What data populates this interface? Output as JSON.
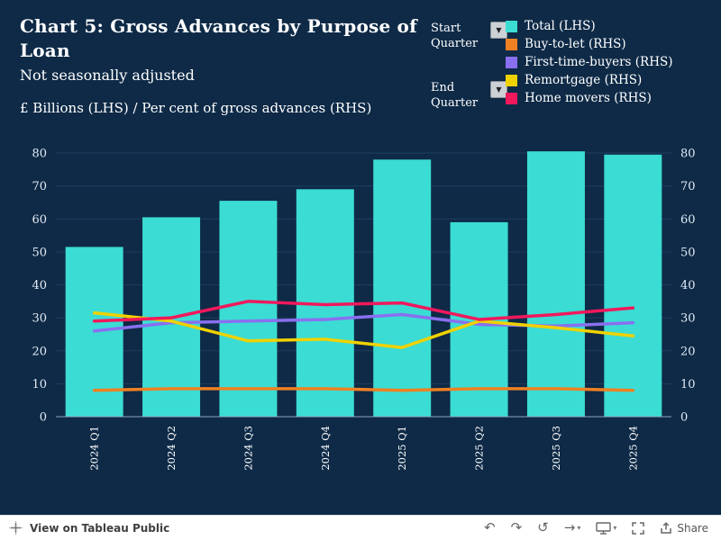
{
  "header": {
    "title": "Chart 5: Gross Advances by Purpose of Loan",
    "subtitle": "Not seasonally adjusted",
    "axis_note": "£ Billions (LHS) / Per cent of gross advances (RHS)"
  },
  "controls": {
    "start_quarter_label": "Start Quarter",
    "end_quarter_label": "End Quarter"
  },
  "legend": [
    {
      "label": "Total (LHS)",
      "color": "#3bdcd3"
    },
    {
      "label": "Buy-to-let (RHS)",
      "color": "#ee8022"
    },
    {
      "label": "First-time-buyers (RHS)",
      "color": "#8a6ff0"
    },
    {
      "label": "Remortgage (RHS)",
      "color": "#f0d100"
    },
    {
      "label": "Home movers (RHS)",
      "color": "#f1185c"
    }
  ],
  "chart_data": {
    "type": "bar",
    "subtype": "combo-bar-line",
    "categories": [
      "2024 Q1",
      "2024 Q2",
      "2024 Q3",
      "2024 Q4",
      "2025 Q1",
      "2025 Q2",
      "2025 Q3",
      "2025 Q4"
    ],
    "bar_series": {
      "name": "Total (LHS)",
      "color": "#3bdcd3",
      "values": [
        51.5,
        60.5,
        65.5,
        69,
        78,
        59,
        80.5,
        79.5
      ]
    },
    "line_series": [
      {
        "name": "Buy-to-let (RHS)",
        "color": "#ee8022",
        "values": [
          8,
          8.5,
          8.5,
          8.5,
          8,
          8.5,
          8.5,
          8
        ]
      },
      {
        "name": "First-time-buyers (RHS)",
        "color": "#8a6ff0",
        "values": [
          26,
          28.5,
          29,
          29.5,
          31,
          28,
          27.5,
          28.5
        ]
      },
      {
        "name": "Remortgage (RHS)",
        "color": "#f0d100",
        "values": [
          31.5,
          29,
          23,
          23.5,
          21,
          29,
          27,
          24.5
        ]
      },
      {
        "name": "Home movers (RHS)",
        "color": "#f1185c",
        "values": [
          29,
          30,
          35,
          34,
          34.5,
          29.5,
          31,
          33
        ]
      }
    ],
    "title": "Chart 5: Gross Advances by Purpose of Loan",
    "xlabel": "",
    "ylabel_left": "£ Billions (LHS)",
    "ylabel_right": "Per cent of gross advances (RHS)",
    "ylim": [
      0,
      80
    ],
    "yticks": [
      0,
      10,
      20,
      30,
      40,
      50,
      60,
      70,
      80
    ],
    "grid": true,
    "legend_position": "top-right"
  },
  "toolbar": {
    "view_label": "View on Tableau Public",
    "share_label": "Share"
  }
}
